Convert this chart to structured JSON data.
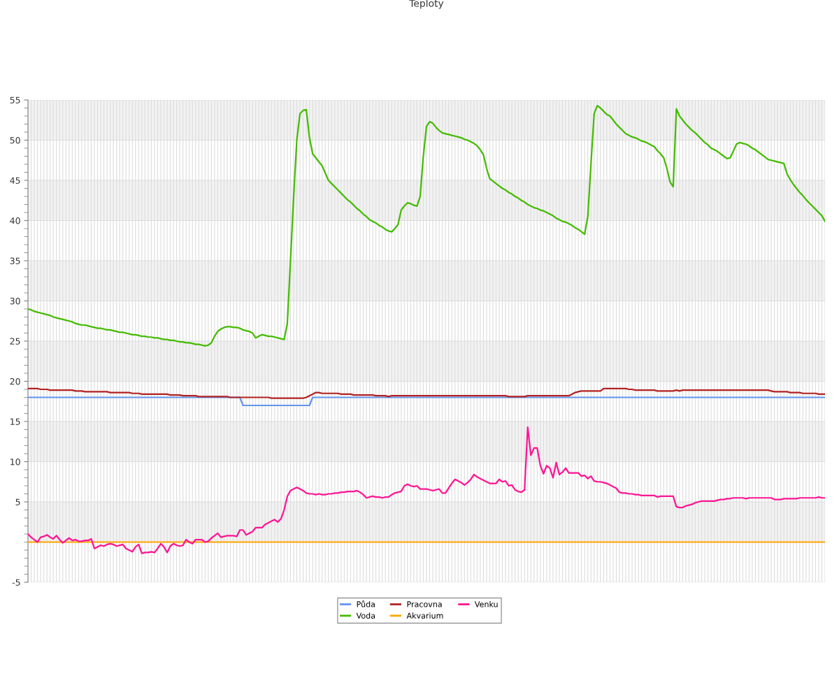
{
  "chart_data": {
    "type": "line",
    "title": "Teploty",
    "categories": [
      null,
      null,
      null,
      null,
      null,
      null,
      null,
      null,
      null,
      null,
      null,
      null,
      null,
      null,
      null,
      null,
      null,
      null,
      null,
      null,
      null,
      null,
      null,
      null,
      null,
      null,
      null,
      null,
      null,
      null,
      null,
      null,
      null,
      null,
      null,
      null,
      null,
      null,
      null,
      null,
      null,
      null,
      null,
      null,
      null,
      null,
      null,
      null,
      null,
      null,
      null,
      null,
      null,
      null,
      null,
      null,
      null,
      null,
      null,
      null,
      null,
      null,
      null,
      null,
      null,
      null,
      null,
      null,
      null,
      null,
      null,
      null,
      null,
      null,
      null,
      null,
      null,
      null,
      null,
      null,
      null,
      null,
      null,
      null,
      null,
      null,
      null,
      null,
      null,
      null,
      null,
      null,
      null,
      null,
      null,
      null,
      null,
      null,
      null,
      null,
      null,
      null,
      null,
      null,
      null,
      null,
      null,
      null,
      null,
      null,
      null,
      null,
      null,
      null,
      null,
      null,
      null,
      null,
      null,
      null,
      null,
      null,
      null,
      null,
      null,
      null,
      null,
      null,
      null,
      null,
      null,
      null,
      null,
      null,
      null,
      null,
      null,
      null,
      null,
      null,
      null,
      null,
      null,
      null,
      null,
      null,
      null,
      null,
      null,
      null,
      null,
      null,
      null,
      null,
      null,
      null,
      null,
      null,
      null,
      null,
      null,
      null,
      null,
      null,
      null,
      null,
      null,
      null,
      null,
      null,
      null,
      null,
      null,
      null,
      null,
      null,
      null,
      null,
      null,
      null,
      null,
      null,
      null,
      null,
      null,
      null,
      null,
      null,
      null,
      null,
      null,
      null,
      null,
      null,
      null,
      null,
      null,
      null,
      null,
      null,
      null,
      null,
      null,
      null,
      null,
      null,
      null,
      null,
      null,
      null,
      null,
      null,
      null,
      null,
      null,
      null,
      null,
      null,
      null,
      null,
      null,
      null,
      null,
      null,
      null,
      null,
      null,
      null,
      null,
      null,
      null,
      null,
      null,
      null,
      null,
      null,
      null,
      null,
      null,
      null,
      null,
      null,
      null,
      null,
      null,
      null,
      null,
      null,
      null,
      null,
      null,
      null,
      null
    ],
    "ylim": [
      -5,
      55
    ],
    "yticks": [
      -5,
      {
        "value": -4,
        "label": null
      },
      {
        "value": -3,
        "label": null
      },
      {
        "value": -2,
        "label": null
      },
      {
        "value": -1,
        "label": null
      },
      {
        "value": 0,
        "label": null
      },
      {
        "value": 1,
        "label": null
      },
      {
        "value": 2,
        "label": null
      },
      {
        "value": 3,
        "label": null
      },
      {
        "value": 4,
        "label": null
      },
      5,
      {
        "value": 6,
        "label": null
      },
      {
        "value": 7,
        "label": null
      },
      {
        "value": 8,
        "label": null
      },
      {
        "value": 9,
        "label": null
      },
      10,
      {
        "value": 11,
        "label": null
      },
      {
        "value": 12,
        "label": null
      },
      {
        "value": 13,
        "label": null
      },
      {
        "value": 14,
        "label": null
      },
      15,
      {
        "value": 16,
        "label": null
      },
      {
        "value": 17,
        "label": null
      },
      {
        "value": 18,
        "label": null
      },
      {
        "value": 19,
        "label": null
      },
      20,
      {
        "value": 21,
        "label": null
      },
      {
        "value": 22,
        "label": null
      },
      {
        "value": 23,
        "label": null
      },
      {
        "value": 24,
        "label": null
      },
      25,
      {
        "value": 26,
        "label": null
      },
      {
        "value": 27,
        "label": null
      },
      {
        "value": 28,
        "label": null
      },
      {
        "value": 29,
        "label": null
      },
      30,
      {
        "value": 31,
        "label": null
      },
      {
        "value": 32,
        "label": null
      },
      {
        "value": 33,
        "label": null
      },
      {
        "value": 34,
        "label": null
      },
      35,
      {
        "value": 36,
        "label": null
      },
      {
        "value": 37,
        "label": null
      },
      {
        "value": 38,
        "label": null
      },
      {
        "value": 39,
        "label": null
      },
      40,
      {
        "value": 41,
        "label": null
      },
      {
        "value": 42,
        "label": null
      },
      {
        "value": 43,
        "label": null
      },
      {
        "value": 44,
        "label": null
      },
      45,
      {
        "value": 46,
        "label": null
      },
      {
        "value": 47,
        "label": null
      },
      {
        "value": 48,
        "label": null
      },
      {
        "value": 49,
        "label": null
      },
      50,
      {
        "value": 51,
        "label": null
      },
      {
        "value": 52,
        "label": null
      },
      {
        "value": 53,
        "label": null
      },
      {
        "value": 54,
        "label": null
      },
      55
    ],
    "grid": true,
    "legend": "bottom",
    "marker": "none",
    "line_style": "solid",
    "bands": [
      {
        "axis": "y",
        "from": 0,
        "to": 5,
        "color": "#f2f2f2"
      },
      {
        "axis": "y",
        "from": 10,
        "to": 15,
        "color": "#f2f2f2"
      },
      {
        "axis": "y",
        "from": 20,
        "to": 25,
        "color": "#f2f2f2"
      },
      {
        "axis": "y",
        "from": 30,
        "to": 35,
        "color": "#f2f2f2"
      },
      {
        "axis": "y",
        "from": 40,
        "to": 45,
        "color": "#f2f2f2"
      },
      {
        "axis": "y",
        "from": 50,
        "to": 55,
        "color": "#f2f2f2"
      }
    ],
    "series": [
      {
        "name": "Půda",
        "color": "#6495ed",
        "values": [
          18,
          18,
          18,
          18,
          18,
          18,
          18,
          18,
          18,
          18,
          18,
          18,
          18,
          18,
          18,
          18,
          18,
          18,
          18,
          18,
          18,
          18,
          18,
          18,
          18,
          18,
          18,
          18,
          18,
          18,
          18,
          18,
          18,
          18,
          18,
          18,
          18,
          18,
          18,
          18,
          18,
          18,
          18,
          18,
          18,
          18,
          18,
          18,
          18,
          18,
          18,
          18,
          18,
          18,
          18,
          18,
          18,
          18,
          18,
          18,
          18,
          18,
          18,
          18,
          18,
          18,
          18,
          18,
          17,
          17,
          17,
          17,
          17,
          17,
          17,
          17,
          17,
          17,
          17,
          17,
          17,
          17,
          17,
          17,
          17,
          17,
          17,
          17,
          17,
          17,
          18,
          18,
          18,
          18,
          18,
          18,
          18,
          18,
          18,
          18,
          18,
          18,
          18,
          18,
          18,
          18,
          18,
          18,
          18,
          18,
          18,
          18,
          18,
          18,
          18,
          18,
          18,
          18,
          18,
          18,
          18,
          18,
          18,
          18,
          18,
          18,
          18,
          18,
          18,
          18,
          18,
          18,
          18,
          18,
          18,
          18,
          18,
          18,
          18,
          18,
          18,
          18,
          18,
          18,
          18,
          18,
          18,
          18,
          18,
          18,
          18,
          18,
          18,
          18,
          18,
          18,
          18,
          18,
          18,
          18,
          18,
          18,
          18,
          18,
          18,
          18,
          18,
          18,
          18,
          18,
          18,
          18,
          18,
          18,
          18,
          18,
          18,
          18,
          18,
          18,
          18,
          18,
          18,
          18,
          18,
          18,
          18,
          18,
          18,
          18,
          18,
          18,
          18,
          18,
          18,
          18,
          18,
          18,
          18,
          18,
          18,
          18,
          18,
          18,
          18,
          18,
          18,
          18,
          18,
          18,
          18,
          18,
          18,
          18,
          18,
          18,
          18,
          18,
          18,
          18,
          18,
          18,
          18,
          18,
          18,
          18,
          18,
          18,
          18,
          18,
          18,
          18,
          18,
          18,
          18,
          18,
          18,
          18,
          18,
          18,
          18,
          18,
          18,
          18,
          18,
          18,
          18,
          18,
          18,
          18,
          18,
          18,
          18
        ]
      },
      {
        "name": "Voda",
        "color": "#44bb00",
        "values": [
          29.0,
          28.9,
          28.7,
          28.6,
          28.5,
          28.4,
          28.3,
          28.2,
          28.0,
          27.9,
          27.8,
          27.7,
          27.6,
          27.5,
          27.4,
          27.2,
          27.1,
          27.0,
          27.0,
          26.9,
          26.8,
          26.7,
          26.6,
          26.6,
          26.5,
          26.4,
          26.4,
          26.3,
          26.2,
          26.1,
          26.1,
          26.0,
          25.9,
          25.8,
          25.8,
          25.7,
          25.6,
          25.6,
          25.5,
          25.5,
          25.4,
          25.4,
          25.3,
          25.2,
          25.2,
          25.1,
          25.1,
          25.0,
          24.9,
          24.9,
          24.8,
          24.8,
          24.7,
          24.6,
          24.6,
          24.5,
          24.4,
          24.5,
          24.8,
          25.6,
          26.2,
          26.5,
          26.7,
          26.8,
          26.8,
          26.7,
          26.7,
          26.6,
          26.4,
          26.3,
          26.2,
          26.0,
          25.4,
          25.6,
          25.8,
          25.7,
          25.6,
          25.6,
          25.5,
          25.4,
          25.3,
          25.2,
          27.2,
          35,
          43,
          50,
          53.3,
          53.7,
          53.8,
          50.3,
          48.3,
          47.8,
          47.3,
          46.8,
          45.9,
          45.0,
          44.6,
          44.2,
          43.8,
          43.4,
          43.0,
          42.6,
          42.3,
          41.9,
          41.5,
          41.2,
          40.8,
          40.5,
          40.1,
          39.9,
          39.7,
          39.4,
          39.2,
          38.9,
          38.7,
          38.6,
          39.0,
          39.5,
          41.3,
          41.8,
          42.2,
          42.1,
          41.9,
          41.8,
          43,
          48,
          51.7,
          52.3,
          52.1,
          51.6,
          51.2,
          50.9,
          50.8,
          50.7,
          50.6,
          50.5,
          50.4,
          50.3,
          50.1,
          50.0,
          49.8,
          49.6,
          49.3,
          48.8,
          48.2,
          46.5,
          45.2,
          44.9,
          44.6,
          44.3,
          44.0,
          43.8,
          43.5,
          43.3,
          43.0,
          42.8,
          42.5,
          42.3,
          42.0,
          41.8,
          41.6,
          41.5,
          41.3,
          41.2,
          41.0,
          40.8,
          40.6,
          40.3,
          40.1,
          39.9,
          39.8,
          39.6,
          39.4,
          39.1,
          38.9,
          38.6,
          38.3,
          40.5,
          47,
          53.3,
          54.3,
          54.0,
          53.6,
          53.2,
          53.0,
          52.5,
          52.0,
          51.6,
          51.2,
          50.8,
          50.6,
          50.4,
          50.3,
          50.1,
          49.9,
          49.8,
          49.6,
          49.4,
          49.2,
          48.7,
          48.3,
          47.8,
          46.5,
          44.8,
          44.2,
          53.9,
          53.0,
          52.5,
          52.0,
          51.6,
          51.2,
          50.9,
          50.5,
          50.1,
          49.7,
          49.4,
          49.0,
          48.8,
          48.6,
          48.3,
          48.0,
          47.7,
          47.8,
          48.6,
          49.5,
          49.7,
          49.6,
          49.5,
          49.3,
          49.0,
          48.8,
          48.5,
          48.2,
          47.9,
          47.6,
          47.5,
          47.4,
          47.3,
          47.2,
          47.1,
          45.8,
          45.1,
          44.5,
          44.0,
          43.5,
          43.1,
          42.6,
          42.2,
          41.8,
          41.4,
          41.0,
          40.6,
          39.9
        ]
      },
      {
        "name": "Pracovna",
        "color": "#b22222",
        "values": [
          19.1,
          19.1,
          19.1,
          19.1,
          19.0,
          19.0,
          19.0,
          18.9,
          18.9,
          18.9,
          18.9,
          18.9,
          18.9,
          18.9,
          18.9,
          18.8,
          18.8,
          18.8,
          18.7,
          18.7,
          18.7,
          18.7,
          18.7,
          18.7,
          18.7,
          18.7,
          18.6,
          18.6,
          18.6,
          18.6,
          18.6,
          18.6,
          18.6,
          18.5,
          18.5,
          18.5,
          18.4,
          18.4,
          18.4,
          18.4,
          18.4,
          18.4,
          18.4,
          18.4,
          18.4,
          18.3,
          18.3,
          18.3,
          18.3,
          18.2,
          18.2,
          18.2,
          18.2,
          18.2,
          18.1,
          18.1,
          18.1,
          18.1,
          18.1,
          18.1,
          18.1,
          18.1,
          18.1,
          18.1,
          18.0,
          18.0,
          18.0,
          18.0,
          18.0,
          18.0,
          18.0,
          18.0,
          18.0,
          18.0,
          18.0,
          18.0,
          18.0,
          17.9,
          17.9,
          17.9,
          17.9,
          17.9,
          17.9,
          17.9,
          17.9,
          17.9,
          17.9,
          17.9,
          18.0,
          18.2,
          18.4,
          18.6,
          18.6,
          18.5,
          18.5,
          18.5,
          18.5,
          18.5,
          18.5,
          18.4,
          18.4,
          18.4,
          18.4,
          18.3,
          18.3,
          18.3,
          18.3,
          18.3,
          18.3,
          18.3,
          18.2,
          18.2,
          18.2,
          18.2,
          18.1,
          18.2,
          18.2,
          18.2,
          18.2,
          18.2,
          18.2,
          18.2,
          18.2,
          18.2,
          18.2,
          18.2,
          18.2,
          18.2,
          18.2,
          18.2,
          18.2,
          18.2,
          18.2,
          18.2,
          18.2,
          18.2,
          18.2,
          18.2,
          18.2,
          18.2,
          18.2,
          18.2,
          18.2,
          18.2,
          18.2,
          18.2,
          18.2,
          18.2,
          18.2,
          18.2,
          18.2,
          18.2,
          18.1,
          18.1,
          18.1,
          18.1,
          18.1,
          18.1,
          18.2,
          18.2,
          18.2,
          18.2,
          18.2,
          18.2,
          18.2,
          18.2,
          18.2,
          18.2,
          18.2,
          18.2,
          18.2,
          18.2,
          18.4,
          18.6,
          18.7,
          18.8,
          18.8,
          18.8,
          18.8,
          18.8,
          18.8,
          18.8,
          19.1,
          19.1,
          19.1,
          19.1,
          19.1,
          19.1,
          19.1,
          19.1,
          19.0,
          19.0,
          18.9,
          18.9,
          18.9,
          18.9,
          18.9,
          18.9,
          18.9,
          18.8,
          18.8,
          18.8,
          18.8,
          18.8,
          18.8,
          18.9,
          18.8,
          18.9,
          18.9,
          18.9,
          18.9,
          18.9,
          18.9,
          18.9,
          18.9,
          18.9,
          18.9,
          18.9,
          18.9,
          18.9,
          18.9,
          18.9,
          18.9,
          18.9,
          18.9,
          18.9,
          18.9,
          18.9,
          18.9,
          18.9,
          18.9,
          18.9,
          18.9,
          18.9,
          18.9,
          18.8,
          18.7,
          18.7,
          18.7,
          18.7,
          18.7,
          18.6,
          18.6,
          18.6,
          18.6,
          18.5,
          18.5,
          18.5,
          18.5,
          18.5,
          18.4,
          18.4,
          18.4
        ]
      },
      {
        "name": "Akvarium",
        "color": "#ffa500",
        "values": [
          0,
          0,
          0,
          0,
          0,
          0,
          0,
          0,
          0,
          0,
          0,
          0,
          0,
          0,
          0,
          0,
          0,
          0,
          0,
          0,
          0,
          0,
          0,
          0,
          0,
          0,
          0,
          0,
          0,
          0,
          0,
          0,
          0,
          0,
          0,
          0,
          0,
          0,
          0,
          0,
          0,
          0,
          0,
          0,
          0,
          0,
          0,
          0,
          0,
          0,
          0,
          0,
          0,
          0,
          0,
          0,
          0,
          0,
          0,
          0,
          0,
          0,
          0,
          0,
          0,
          0,
          0,
          0,
          0,
          0,
          0,
          0,
          0,
          0,
          0,
          0,
          0,
          0,
          0,
          0,
          0,
          0,
          0,
          0,
          0,
          0,
          0,
          0,
          0,
          0,
          0,
          0,
          0,
          0,
          0,
          0,
          0,
          0,
          0,
          0,
          0,
          0,
          0,
          0,
          0,
          0,
          0,
          0,
          0,
          0,
          0,
          0,
          0,
          0,
          0,
          0,
          0,
          0,
          0,
          0,
          0,
          0,
          0,
          0,
          0,
          0,
          0,
          0,
          0,
          0,
          0,
          0,
          0,
          0,
          0,
          0,
          0,
          0,
          0,
          0,
          0,
          0,
          0,
          0,
          0,
          0,
          0,
          0,
          0,
          0,
          0,
          0,
          0,
          0,
          0,
          0,
          0,
          0,
          0,
          0,
          0,
          0,
          0,
          0,
          0,
          0,
          0,
          0,
          0,
          0,
          0,
          0,
          0,
          0,
          0,
          0,
          0,
          0,
          0,
          0,
          0,
          0,
          0,
          0,
          0,
          0,
          0,
          0,
          0,
          0,
          0,
          0,
          0,
          0,
          0,
          0,
          0,
          0,
          0,
          0,
          0,
          0,
          0,
          0,
          0,
          0,
          0,
          0,
          0,
          0,
          0,
          0,
          0,
          0,
          0,
          0,
          0,
          0,
          0,
          0,
          0,
          0,
          0,
          0,
          0,
          0,
          0,
          0,
          0,
          0,
          0,
          0,
          0,
          0,
          0,
          0,
          0,
          0,
          0,
          0,
          0,
          0,
          0,
          0,
          0,
          0,
          0,
          0,
          0,
          0,
          0,
          0,
          0
        ]
      },
      {
        "name": "Venku",
        "color": "#ff1493",
        "values": [
          1.0,
          0.6,
          0.3,
          0.0,
          0.6,
          0.7,
          0.9,
          0.6,
          0.4,
          0.8,
          0.3,
          -0.1,
          0.2,
          0.5,
          0.2,
          0.3,
          0.1,
          0.1,
          0.2,
          0.2,
          0.4,
          -0.8,
          -0.6,
          -0.4,
          -0.5,
          -0.3,
          -0.2,
          -0.3,
          -0.5,
          -0.4,
          -0.3,
          -0.8,
          -1.0,
          -1.2,
          -0.6,
          -0.3,
          -1.4,
          -1.3,
          -1.3,
          -1.2,
          -1.3,
          -0.8,
          -0.2,
          -0.6,
          -1.3,
          -0.5,
          -0.2,
          -0.4,
          -0.5,
          -0.4,
          0.3,
          0.0,
          -0.2,
          0.3,
          0.3,
          0.3,
          0.0,
          0.1,
          0.5,
          0.8,
          1.1,
          0.6,
          0.7,
          0.8,
          0.8,
          0.8,
          0.7,
          1.5,
          1.5,
          0.9,
          1.1,
          1.3,
          1.8,
          1.8,
          1.8,
          2.2,
          2.4,
          2.6,
          2.8,
          2.5,
          2.9,
          4.0,
          5.7,
          6.4,
          6.6,
          6.8,
          6.6,
          6.4,
          6.1,
          6.0,
          6.0,
          5.9,
          6.0,
          5.9,
          5.9,
          6.0,
          6.0,
          6.1,
          6.1,
          6.2,
          6.2,
          6.3,
          6.3,
          6.3,
          6.4,
          6.2,
          5.9,
          5.5,
          5.6,
          5.7,
          5.6,
          5.6,
          5.5,
          5.6,
          5.6,
          5.9,
          6.1,
          6.2,
          6.3,
          7.0,
          7.2,
          7.0,
          6.9,
          7.0,
          6.6,
          6.6,
          6.6,
          6.5,
          6.4,
          6.5,
          6.6,
          6.1,
          6.1,
          6.7,
          7.3,
          7.8,
          7.6,
          7.4,
          7.1,
          7.4,
          7.8,
          8.4,
          8.1,
          7.9,
          7.7,
          7.5,
          7.3,
          7.3,
          7.3,
          7.8,
          7.5,
          7.6,
          7.0,
          7.1,
          6.5,
          6.3,
          6.2,
          6.5,
          14.3,
          10.8,
          11.7,
          11.7,
          9.5,
          8.5,
          9.5,
          9.2,
          8.0,
          9.9,
          8.4,
          8.7,
          9.2,
          8.6,
          8.6,
          8.6,
          8.6,
          8.2,
          8.3,
          7.9,
          8.2,
          7.6,
          7.5,
          7.5,
          7.4,
          7.3,
          7.1,
          6.9,
          6.7,
          6.2,
          6.1,
          6.1,
          6.0,
          6.0,
          5.9,
          5.9,
          5.8,
          5.8,
          5.8,
          5.8,
          5.8,
          5.6,
          5.7,
          5.7,
          5.7,
          5.7,
          5.7,
          4.4,
          4.3,
          4.3,
          4.5,
          4.6,
          4.7,
          4.9,
          5.0,
          5.1,
          5.1,
          5.1,
          5.1,
          5.1,
          5.2,
          5.3,
          5.3,
          5.4,
          5.4,
          5.5,
          5.5,
          5.5,
          5.5,
          5.4,
          5.5,
          5.5,
          5.5,
          5.5,
          5.5,
          5.5,
          5.5,
          5.5,
          5.3,
          5.3,
          5.3,
          5.4,
          5.4,
          5.4,
          5.4,
          5.4,
          5.5,
          5.5,
          5.5,
          5.5,
          5.5,
          5.5,
          5.6,
          5.5,
          5.5
        ]
      }
    ]
  }
}
